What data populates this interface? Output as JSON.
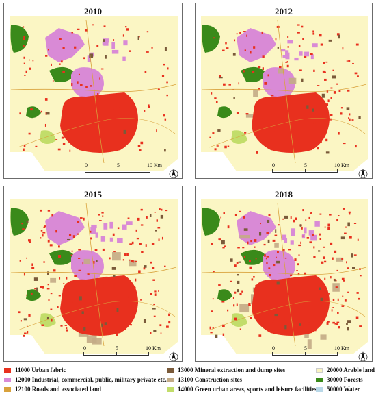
{
  "panels": [
    {
      "year": "2010",
      "intensity": 0.25
    },
    {
      "year": "2012",
      "intensity": 0.5
    },
    {
      "year": "2015",
      "intensity": 0.75
    },
    {
      "year": "2018",
      "intensity": 1.0
    }
  ],
  "scale": {
    "ticks": [
      "0",
      "5",
      "10 Km"
    ]
  },
  "north_arrow": {
    "label": "N"
  },
  "colors": {
    "background": "#fbf6c4",
    "urban": "#e8301e",
    "industrial": "#d98ad6",
    "roads": "#d9a23c",
    "mineral": "#7a5a3a",
    "construction": "#c3ab86",
    "green_urban": "#c2dd6a",
    "arable": "#f9f4bf",
    "forests": "#3a8a1a",
    "water": "#b9d8e8"
  },
  "legend": [
    {
      "label": "11000 Urban fabric",
      "color": "#e8301e"
    },
    {
      "label": "12000 Industrial, commercial, public, military private etc.",
      "color": "#d98ad6"
    },
    {
      "label": "12100 Roads and associated land",
      "color": "#d9a23c"
    },
    {
      "label": "13000 Mineral extraction and dump sites",
      "color": "#7a5a3a"
    },
    {
      "label": "13100 Construction sites",
      "color": "#c3ab86"
    },
    {
      "label": "14000 Green urban areas, sports and leisure facilities",
      "color": "#c2dd6a"
    },
    {
      "label": "20000 Arable land",
      "color": "#f9f4bf"
    },
    {
      "label": "30000 Forests",
      "color": "#3a8a1a"
    },
    {
      "label": "50000 Water",
      "color": "#b9d8e8"
    }
  ]
}
